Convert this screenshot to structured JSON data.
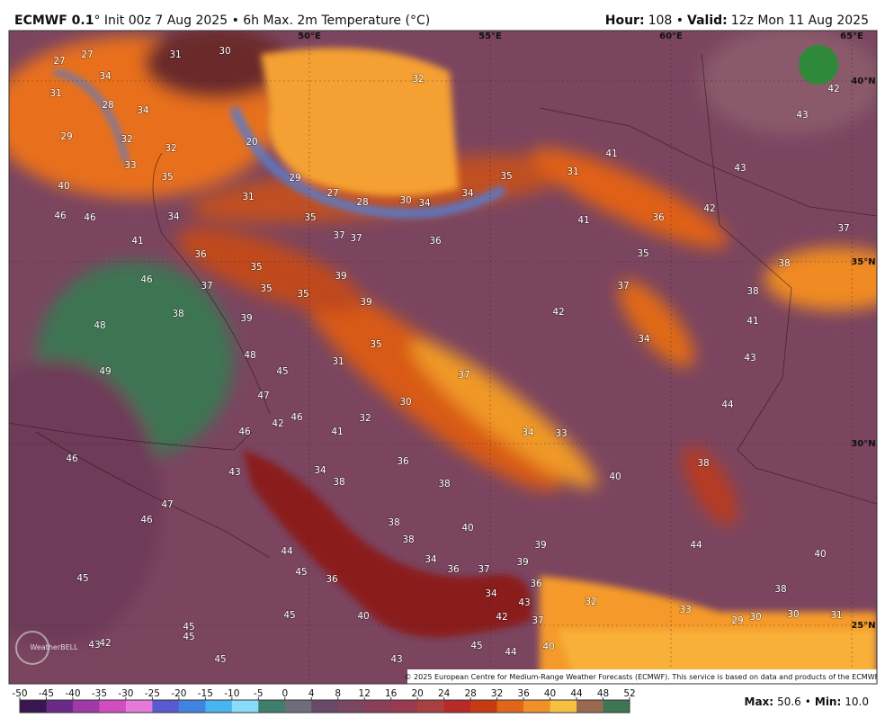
{
  "header": {
    "model": "ECMWF 0.1",
    "title": "° Init 00z 7 Aug 2025 • 6h Max. 2m Temperature (°C)",
    "hour_label": "Hour:",
    "hour": "108 •",
    "valid_label": "Valid:",
    "valid": "12z Mon 11 Aug 2025"
  },
  "map": {
    "longitudes": [
      "50°E",
      "55°E",
      "60°E",
      "65°E"
    ],
    "latitudes": [
      "40°N",
      "35°N",
      "30°N",
      "25°N"
    ],
    "labels": [
      27,
      27,
      31,
      30,
      34,
      31,
      28,
      34,
      29,
      32,
      32,
      33,
      35,
      20,
      32,
      29,
      27,
      28,
      30,
      34,
      34,
      35,
      31,
      41,
      43,
      43,
      42,
      40,
      46,
      46,
      34,
      31,
      35,
      37,
      37,
      36,
      41,
      36,
      42,
      37,
      41,
      36,
      35,
      39,
      35,
      38,
      46,
      37,
      35,
      35,
      39,
      37,
      38,
      38,
      39,
      42,
      41,
      48,
      35,
      34,
      48,
      31,
      43,
      49,
      45,
      37,
      47,
      30,
      44,
      46,
      42,
      32,
      46,
      41,
      34,
      33,
      46,
      34,
      36,
      38,
      38,
      40,
      38,
      43,
      47,
      46,
      38,
      40,
      38,
      39,
      44,
      40,
      44,
      34,
      36,
      37,
      39,
      45,
      36,
      36,
      34,
      38,
      45,
      32,
      43,
      40,
      42,
      37,
      33,
      29,
      30,
      30,
      31,
      45,
      45,
      45,
      43,
      42,
      45,
      44,
      40,
      45,
      43
    ],
    "logo": "WeatherBELL",
    "credit": "© 2025 European Centre for Medium-Range Weather Forecasts (ECMWF). This service is based on data and products of the ECMWF."
  },
  "colorbar": {
    "ticks": [
      -50,
      -45,
      -40,
      -35,
      -30,
      -25,
      -20,
      -15,
      -10,
      -5,
      0,
      4,
      8,
      12,
      16,
      20,
      24,
      28,
      32,
      36,
      40,
      44,
      48,
      52
    ]
  },
  "footer": {
    "max_label": "Max:",
    "max": "50.6",
    "separator": "•",
    "min_label": "Min:",
    "min": "10.0"
  }
}
